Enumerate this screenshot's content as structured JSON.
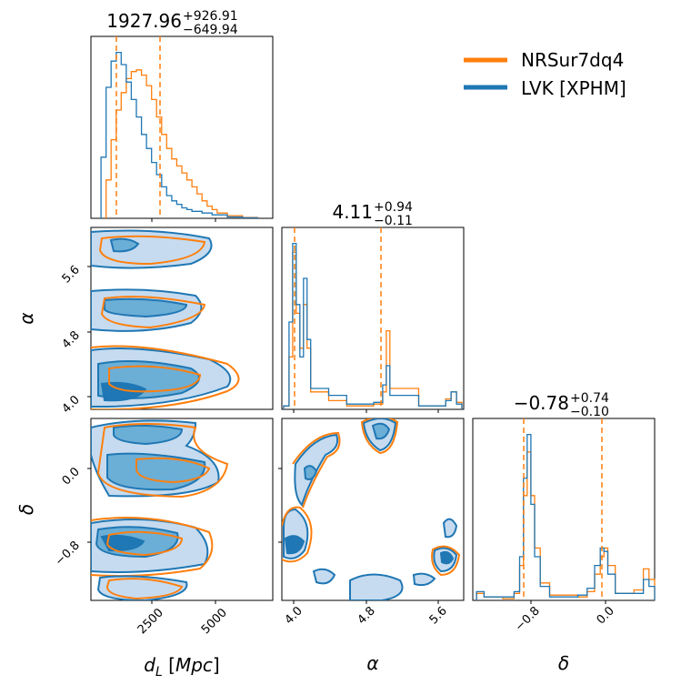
{
  "legend": {
    "entries": [
      {
        "label": "NRSur7dq4",
        "color": "#ff7f0e"
      },
      {
        "label": "LVK [XPHM]",
        "color": "#1f77b4"
      }
    ],
    "placement": "top-right"
  },
  "titles": {
    "dL": {
      "main": "1927.96",
      "plus": "+926.91",
      "minus": "−649.94"
    },
    "alpha": {
      "main": "4.11",
      "plus": "+0.94",
      "minus": "−0.11"
    },
    "delta": {
      "main": "−0.78",
      "plus": "+0.74",
      "minus": "−0.10"
    }
  },
  "axis_labels": {
    "x_dL": "d_L [Mpc]",
    "x_alpha": "α",
    "x_delta": "δ",
    "y_alpha": "α",
    "y_delta": "δ"
  },
  "ticks": {
    "dL": [
      "2500",
      "5000"
    ],
    "alpha": [
      "4.0",
      "4.8",
      "5.6"
    ],
    "delta": [
      "−0.8",
      "0.0"
    ]
  },
  "chart_data": {
    "type": "corner",
    "parameters": [
      "d_L [Mpc]",
      "α",
      "δ"
    ],
    "ranges": {
      "dL": [
        0,
        7200
      ],
      "alpha": [
        3.88,
        5.9
      ],
      "delta": [
        -1.42,
        0.52
      ]
    },
    "series": [
      {
        "name": "NRSur7dq4",
        "color": "#ff7f0e",
        "marginals": {
          "dL": {
            "median": 1927.96,
            "plus": 926.91,
            "minus": 649.94,
            "quantiles": [
              1278.02,
              2854.87
            ]
          },
          "alpha": {
            "median": 4.11,
            "plus": 0.94,
            "minus": 0.11,
            "quantiles": [
              4.0,
              5.05
            ]
          },
          "delta": {
            "median": -0.78,
            "plus": 0.74,
            "minus": 0.1,
            "quantiles": [
              -0.88,
              -0.04
            ]
          }
        },
        "hist_dL": [
          [
            600,
            0.22
          ],
          [
            800,
            0.45
          ],
          [
            1000,
            0.62
          ],
          [
            1200,
            0.72
          ],
          [
            1400,
            0.8
          ],
          [
            1600,
            0.84
          ],
          [
            1800,
            0.85
          ],
          [
            2000,
            0.82
          ],
          [
            2200,
            0.76
          ],
          [
            2400,
            0.68
          ],
          [
            2600,
            0.58
          ],
          [
            2800,
            0.48
          ],
          [
            3000,
            0.4
          ],
          [
            3200,
            0.34
          ],
          [
            3400,
            0.3
          ],
          [
            3600,
            0.26
          ],
          [
            3800,
            0.22
          ],
          [
            4000,
            0.18
          ],
          [
            4200,
            0.14
          ],
          [
            4400,
            0.1
          ],
          [
            4600,
            0.07
          ],
          [
            4800,
            0.05
          ],
          [
            5000,
            0.03
          ],
          [
            5400,
            0.015
          ],
          [
            6000,
            0.005
          ]
        ],
        "hist_alpha": [
          [
            3.9,
            0.02
          ],
          [
            3.96,
            0.3
          ],
          [
            4.0,
            0.9
          ],
          [
            4.04,
            0.55
          ],
          [
            4.08,
            0.35
          ],
          [
            4.12,
            0.6
          ],
          [
            4.16,
            0.35
          ],
          [
            4.2,
            0.1
          ],
          [
            4.4,
            0.05
          ],
          [
            4.6,
            0.02
          ],
          [
            4.9,
            0.03
          ],
          [
            5.0,
            0.1
          ],
          [
            5.04,
            0.45
          ],
          [
            5.08,
            0.12
          ],
          [
            5.4,
            0.02
          ],
          [
            5.7,
            0.06
          ],
          [
            5.76,
            0.1
          ],
          [
            5.82,
            0.04
          ]
        ],
        "hist_delta": [
          [
            -1.38,
            0.04
          ],
          [
            -1.3,
            0.02
          ],
          [
            -1.2,
            0.02
          ],
          [
            -1.1,
            0.01
          ],
          [
            -0.98,
            0.04
          ],
          [
            -0.92,
            0.2
          ],
          [
            -0.88,
            0.6
          ],
          [
            -0.84,
            0.85
          ],
          [
            -0.8,
            0.6
          ],
          [
            -0.76,
            0.3
          ],
          [
            -0.7,
            0.1
          ],
          [
            -0.6,
            0.03
          ],
          [
            -0.3,
            0.02
          ],
          [
            -0.2,
            0.05
          ],
          [
            -0.12,
            0.15
          ],
          [
            -0.06,
            0.25
          ],
          [
            -0.02,
            0.3
          ],
          [
            0.02,
            0.2
          ],
          [
            0.1,
            0.04
          ],
          [
            0.3,
            0.06
          ],
          [
            0.4,
            0.18
          ],
          [
            0.46,
            0.12
          ]
        ]
      },
      {
        "name": "LVK [XPHM]",
        "color": "#1f77b4",
        "hist_dL": [
          [
            400,
            0.35
          ],
          [
            600,
            0.75
          ],
          [
            800,
            0.9
          ],
          [
            1000,
            0.95
          ],
          [
            1200,
            0.88
          ],
          [
            1400,
            0.78
          ],
          [
            1600,
            0.68
          ],
          [
            1800,
            0.58
          ],
          [
            2000,
            0.48
          ],
          [
            2200,
            0.4
          ],
          [
            2400,
            0.32
          ],
          [
            2600,
            0.25
          ],
          [
            2800,
            0.18
          ],
          [
            3000,
            0.13
          ],
          [
            3200,
            0.1
          ],
          [
            3400,
            0.08
          ],
          [
            3600,
            0.06
          ],
          [
            3800,
            0.05
          ],
          [
            4000,
            0.04
          ],
          [
            4400,
            0.03
          ],
          [
            4800,
            0.02
          ],
          [
            5400,
            0.008
          ],
          [
            6000,
            0.003
          ]
        ],
        "hist_alpha": [
          [
            3.9,
            0.02
          ],
          [
            3.96,
            0.5
          ],
          [
            4.0,
            0.95
          ],
          [
            4.04,
            0.6
          ],
          [
            4.08,
            0.3
          ],
          [
            4.12,
            0.75
          ],
          [
            4.16,
            0.4
          ],
          [
            4.2,
            0.12
          ],
          [
            4.4,
            0.08
          ],
          [
            4.6,
            0.03
          ],
          [
            4.9,
            0.04
          ],
          [
            5.0,
            0.14
          ],
          [
            5.04,
            0.25
          ],
          [
            5.08,
            0.08
          ],
          [
            5.4,
            0.02
          ],
          [
            5.7,
            0.05
          ],
          [
            5.76,
            0.1
          ],
          [
            5.82,
            0.03
          ]
        ],
        "hist_delta": [
          [
            -1.38,
            0.05
          ],
          [
            -1.3,
            0.02
          ],
          [
            -1.2,
            0.02
          ],
          [
            -1.1,
            0.02
          ],
          [
            -0.98,
            0.05
          ],
          [
            -0.92,
            0.25
          ],
          [
            -0.88,
            0.7
          ],
          [
            -0.84,
            0.95
          ],
          [
            -0.8,
            0.55
          ],
          [
            -0.76,
            0.25
          ],
          [
            -0.7,
            0.08
          ],
          [
            -0.6,
            0.02
          ],
          [
            -0.3,
            0.03
          ],
          [
            -0.2,
            0.07
          ],
          [
            -0.12,
            0.2
          ],
          [
            -0.06,
            0.3
          ],
          [
            -0.02,
            0.28
          ],
          [
            0.02,
            0.15
          ],
          [
            0.1,
            0.04
          ],
          [
            0.3,
            0.04
          ],
          [
            0.4,
            0.12
          ],
          [
            0.46,
            0.08
          ]
        ]
      }
    ]
  }
}
